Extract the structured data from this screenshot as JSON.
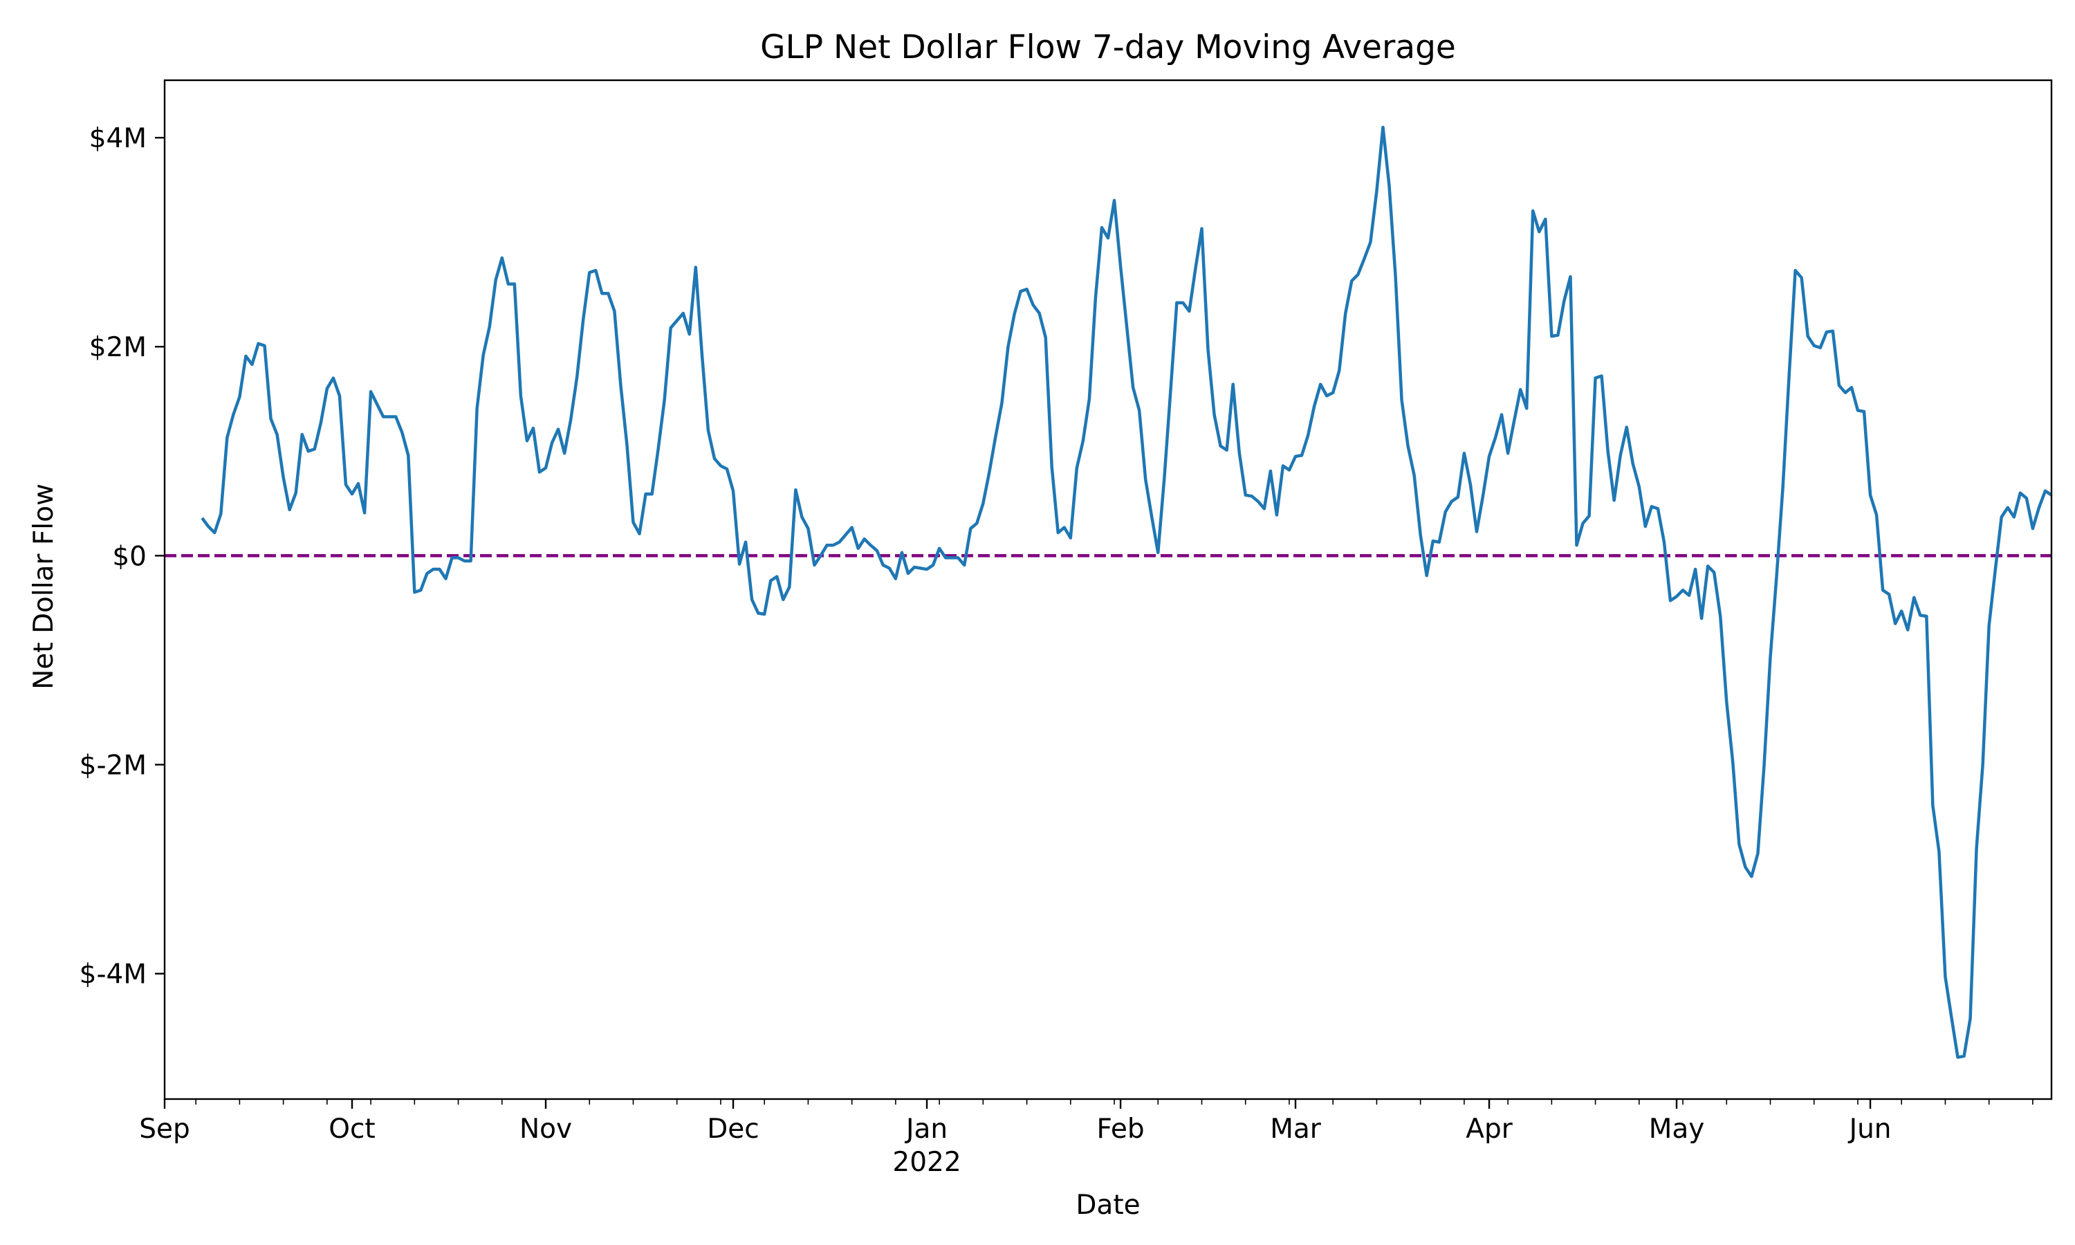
{
  "chart_data": {
    "type": "line",
    "title": "GLP Net Dollar Flow 7-day Moving Average",
    "xlabel": "Date",
    "ylabel": "Net Dollar Flow",
    "x_range": [
      "2021-09-01",
      "2022-06-30"
    ],
    "ylim": [
      -5.2,
      4.55
    ],
    "x_ticks": [
      {
        "date": "2021-09-01",
        "label": "Sep",
        "sub": ""
      },
      {
        "date": "2021-10-01",
        "label": "Oct",
        "sub": ""
      },
      {
        "date": "2021-11-01",
        "label": "Nov",
        "sub": ""
      },
      {
        "date": "2021-12-01",
        "label": "Dec",
        "sub": ""
      },
      {
        "date": "2022-01-01",
        "label": "Jan",
        "sub": "2022"
      },
      {
        "date": "2022-02-01",
        "label": "Feb",
        "sub": ""
      },
      {
        "date": "2022-03-01",
        "label": "Mar",
        "sub": ""
      },
      {
        "date": "2022-04-01",
        "label": "Apr",
        "sub": ""
      },
      {
        "date": "2022-05-01",
        "label": "May",
        "sub": ""
      },
      {
        "date": "2022-06-01",
        "label": "Jun",
        "sub": ""
      }
    ],
    "y_ticks": [
      {
        "value": 4,
        "label": "$4M"
      },
      {
        "value": 2,
        "label": "$2M"
      },
      {
        "value": 0,
        "label": "$0"
      },
      {
        "value": -2,
        "label": "$-2M"
      },
      {
        "value": -4,
        "label": "$-4M"
      }
    ],
    "reference_line": {
      "y": 0,
      "color": "#800080",
      "style": "dashed"
    },
    "grid": false,
    "legend": "none",
    "colors": {
      "series": "#1f77b4",
      "reference": "#800080"
    },
    "series": [
      {
        "x_start": "2021-09-07",
        "values": [
          0.36,
          0.28,
          0.22,
          0.4,
          1.13,
          1.35,
          1.52,
          1.91,
          1.83,
          2.03,
          2.01,
          1.31,
          1.16,
          0.75,
          0.44,
          0.6,
          1.16,
          1.0,
          1.02,
          1.27,
          1.6,
          1.7,
          1.53,
          0.68,
          0.59,
          0.69,
          0.41,
          1.57,
          1.45,
          1.33,
          1.33,
          1.33,
          1.18,
          0.96,
          -0.35,
          -0.33,
          -0.17,
          -0.13,
          -0.13,
          -0.22,
          -0.02,
          -0.02,
          -0.05,
          -0.05,
          1.41,
          1.92,
          2.19,
          2.64,
          2.85,
          2.6,
          2.6,
          1.53,
          1.1,
          1.22,
          0.8,
          0.84,
          1.08,
          1.21,
          0.98,
          1.3,
          1.71,
          2.26,
          2.71,
          2.73,
          2.51,
          2.51,
          2.34,
          1.63,
          1.06,
          0.32,
          0.21,
          0.59,
          0.59,
          1.02,
          1.49,
          2.18,
          2.25,
          2.32,
          2.12,
          2.76,
          1.93,
          1.2,
          0.93,
          0.86,
          0.83,
          0.62,
          -0.08,
          0.13,
          -0.42,
          -0.55,
          -0.56,
          -0.24,
          -0.2,
          -0.42,
          -0.3,
          0.63,
          0.37,
          0.26,
          -0.09,
          0.0,
          0.1,
          0.1,
          0.13,
          0.2,
          0.27,
          0.07,
          0.16,
          0.1,
          0.05,
          -0.09,
          -0.12,
          -0.22,
          0.03,
          -0.17,
          -0.11,
          -0.12,
          -0.13,
          -0.09,
          0.07,
          -0.02,
          -0.02,
          -0.02,
          -0.09,
          0.26,
          0.31,
          0.5,
          0.8,
          1.14,
          1.46,
          2.0,
          2.31,
          2.53,
          2.55,
          2.4,
          2.32,
          2.09,
          0.85,
          0.22,
          0.27,
          0.17,
          0.84,
          1.1,
          1.5,
          2.47,
          3.14,
          3.04,
          3.4,
          2.77,
          2.19,
          1.61,
          1.39,
          0.73,
          0.37,
          0.03,
          0.74,
          1.57,
          2.42,
          2.42,
          2.34,
          2.75,
          3.13,
          1.97,
          1.35,
          1.05,
          1.01,
          1.64,
          0.99,
          0.58,
          0.57,
          0.52,
          0.45,
          0.81,
          0.39,
          0.86,
          0.82,
          0.95,
          0.96,
          1.15,
          1.43,
          1.64,
          1.53,
          1.56,
          1.77,
          2.32,
          2.63,
          2.69,
          2.84,
          3.0,
          3.49,
          4.1,
          3.54,
          2.68,
          1.49,
          1.05,
          0.77,
          0.2,
          -0.19,
          0.14,
          0.13,
          0.42,
          0.52,
          0.56,
          0.98,
          0.68,
          0.23,
          0.57,
          0.95,
          1.13,
          1.35,
          0.98,
          1.29,
          1.59,
          1.41,
          3.3,
          3.1,
          3.22,
          2.1,
          2.11,
          2.44,
          2.67,
          0.1,
          0.31,
          0.38,
          1.7,
          1.72,
          1.0,
          0.53,
          0.96,
          1.23,
          0.88,
          0.66,
          0.28,
          0.47,
          0.45,
          0.13,
          -0.43,
          -0.39,
          -0.33,
          -0.38,
          -0.13,
          -0.6,
          -0.1,
          -0.16,
          -0.58,
          -1.4,
          -1.98,
          -2.76,
          -2.98,
          -3.07,
          -2.85,
          -2.01,
          -0.97,
          -0.2,
          0.65,
          1.72,
          2.73,
          2.66,
          2.1,
          2.01,
          1.99,
          2.14,
          2.15,
          1.63,
          1.56,
          1.61,
          1.39,
          1.38,
          0.58,
          0.39,
          -0.33,
          -0.37,
          -0.65,
          -0.53,
          -0.71,
          -0.4,
          -0.57,
          -0.58,
          -2.39,
          -2.83,
          -4.03,
          -4.42,
          -4.8,
          -4.79,
          -4.43,
          -2.8,
          -2.0,
          -0.67,
          -0.14,
          0.37,
          0.46,
          0.37,
          0.6,
          0.55,
          0.26,
          0.46,
          0.62,
          0.58
        ]
      }
    ]
  }
}
